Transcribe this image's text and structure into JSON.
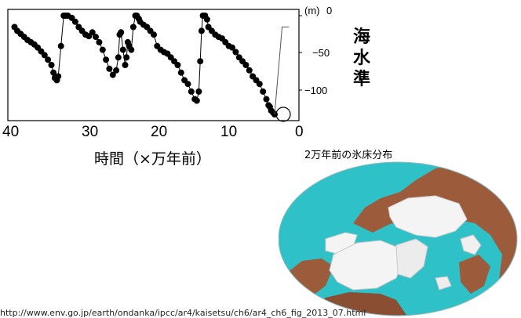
{
  "chart_data": {
    "type": "scatter",
    "title": "",
    "xlabel": "時間（×万年前）",
    "ylabel": "海水準",
    "y_unit": "(m)",
    "x_ticks": [
      40,
      30,
      20,
      10,
      0
    ],
    "y_ticks": [
      0,
      -50,
      -100
    ],
    "y_tick_labels": [
      "0",
      "−50",
      "−100"
    ],
    "xlim": [
      40,
      0
    ],
    "ylim": [
      -130,
      0
    ],
    "series": [
      {
        "x": [
          40.4,
          40.0,
          39.5,
          39.0,
          38.5,
          38.0,
          37.5,
          37.0,
          36.5,
          36.0,
          35.5,
          35.0,
          34.7,
          34.5,
          34.2,
          34.0,
          33.6,
          33.2,
          32.9,
          32.6,
          32.0,
          31.5,
          31.0,
          30.5,
          30.0,
          29.5,
          29.0,
          28.5,
          28.0,
          27.5,
          27.0,
          26.5,
          26.0,
          25.5,
          25.2,
          25.0,
          24.8,
          24.5,
          24.2,
          24.0,
          23.8,
          23.6,
          23.3,
          23.0,
          22.7,
          22.5,
          22.2,
          22.0,
          21.5,
          21.0,
          20.5,
          20.0,
          19.5,
          19.0,
          18.5,
          18.0,
          17.5,
          17.0,
          16.5,
          16.0,
          15.5,
          15.0,
          14.5,
          14.0,
          13.7,
          13.4,
          13.2,
          13.0,
          12.8,
          12.5,
          12.2,
          12.0,
          11.5,
          11.0,
          10.5,
          10.0,
          9.5,
          9.0,
          8.5,
          8.0,
          7.5,
          7.0,
          6.5,
          6.0,
          5.5,
          5.0,
          4.5,
          4.0,
          3.5,
          3.2,
          3.0,
          2.8,
          2.5,
          2.3
        ],
        "values": [
          -15,
          -20,
          -24,
          -28,
          -32,
          -35,
          -38,
          -42,
          -47,
          -52,
          -58,
          -65,
          -75,
          -82,
          -85,
          -80,
          -40,
          0,
          0,
          0,
          -3,
          -8,
          -15,
          -20,
          -25,
          -27,
          -22,
          -28,
          -35,
          -45,
          -58,
          -70,
          -78,
          -72,
          -55,
          -25,
          -22,
          -45,
          -65,
          -55,
          -35,
          -40,
          -45,
          -15,
          0,
          0,
          -4,
          -8,
          -12,
          -15,
          -20,
          -25,
          -40,
          -45,
          -48,
          -50,
          -55,
          -60,
          -65,
          -75,
          -85,
          -90,
          -100,
          -110,
          -112,
          -100,
          -60,
          -20,
          0,
          0,
          -5,
          -15,
          -20,
          -25,
          -28,
          -30,
          -35,
          -40,
          -42,
          -48,
          -55,
          -60,
          -65,
          -72,
          -80,
          -85,
          -90,
          -100,
          -110,
          -118,
          -120,
          -125,
          -128,
          -130
        ]
      }
    ],
    "annotations": [
      "circle at most recent point (~2万年前)"
    ]
  },
  "labels": {
    "y_unit": "(m)",
    "y_tick_0": "0",
    "y_tick_50": "−50",
    "y_tick_100": "−100",
    "x_tick_40": "40",
    "x_tick_30": "30",
    "x_tick_20": "20",
    "x_tick_10": "10",
    "x_tick_0": "0",
    "xlabel": "時間（×万年前）",
    "ylabel": "海水準",
    "map_title": "2万年前の氷床分布",
    "url": "http://www.env.go.jp/earth/ondanka/ipcc/ar4/kaisetsu/ch6/ar4_ch6_fig_2013_07.html"
  },
  "colors": {
    "ocean": "#2fc1c8",
    "land": "#9c5c3c",
    "ice": "#f4f4f4",
    "marker": "#000000"
  }
}
